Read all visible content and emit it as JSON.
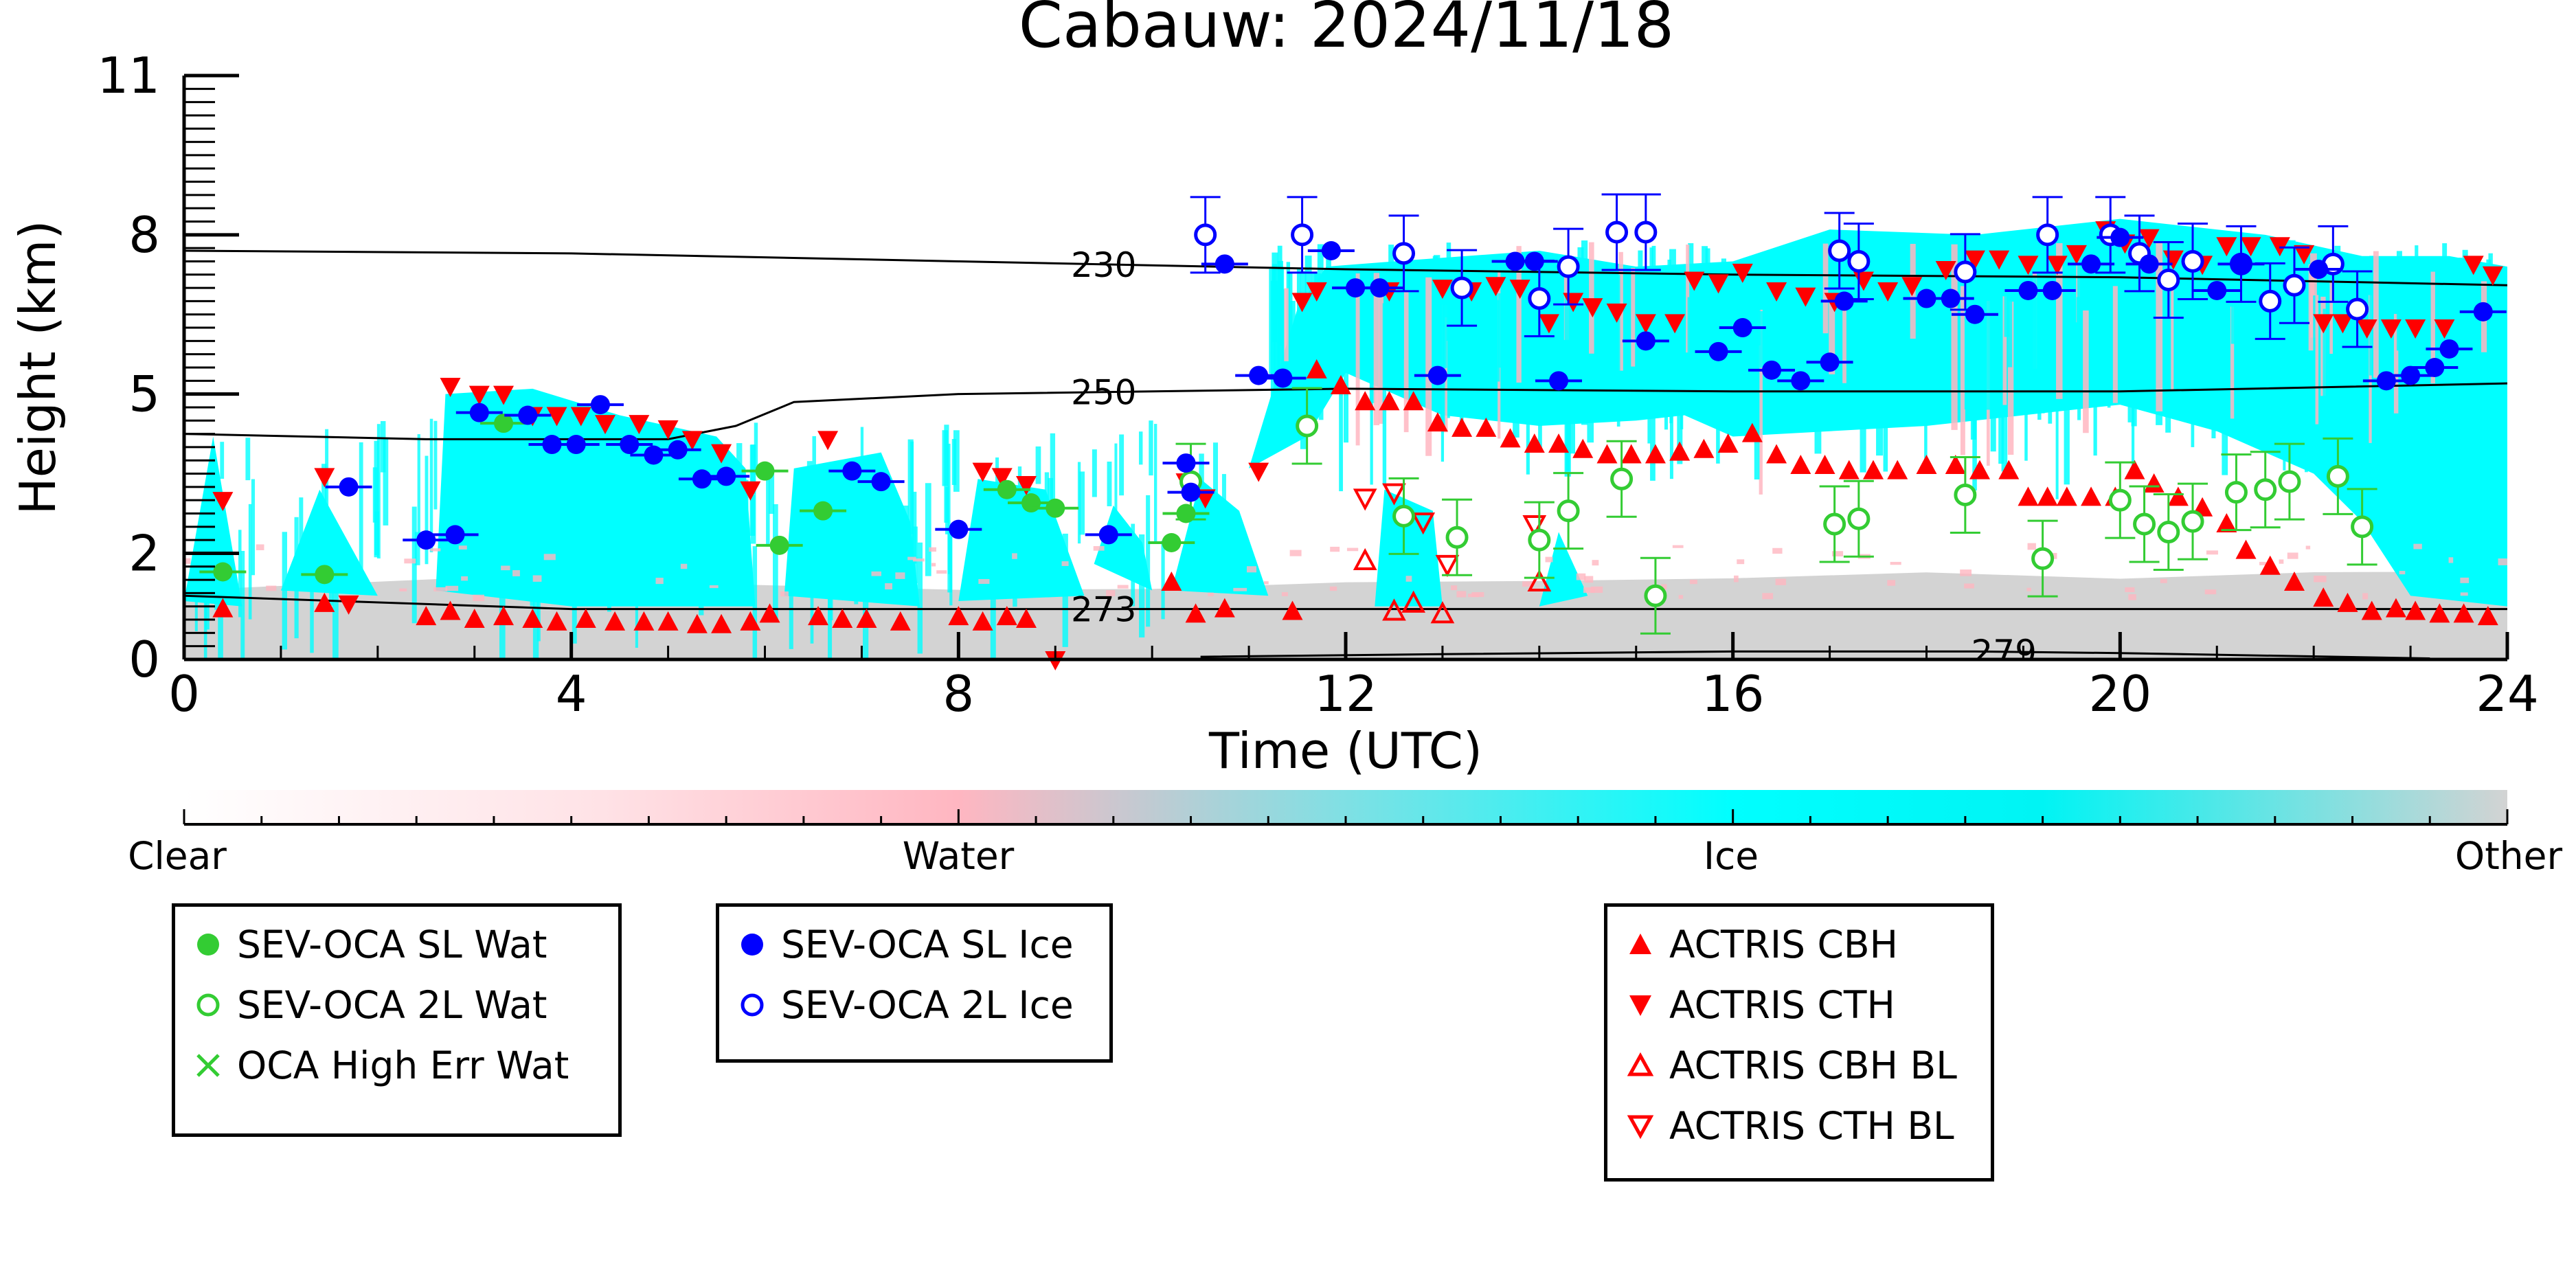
{
  "chart_data": {
    "type": "scatter",
    "title": "Cabauw: 2024/11/18",
    "xlabel": "Time (UTC)",
    "ylabel": "Height (km)",
    "xlim": [
      0,
      24
    ],
    "ylim": [
      0,
      11
    ],
    "x_ticks": [
      0,
      4,
      8,
      12,
      16,
      20,
      24
    ],
    "y_tick_values": [
      0,
      2,
      5,
      8,
      11
    ],
    "y_tick_labels": [
      "0",
      "2",
      "5",
      "8",
      "11"
    ],
    "grid": false,
    "background": "cloud classification image (Clear / Water / Ice / Other) from ground-based remote sensing",
    "colorbar": {
      "labels": [
        "Clear",
        "Water",
        "Ice",
        "Other"
      ],
      "colors": [
        "#ffffff",
        "#ffb6c1",
        "#00ffff",
        "#d3d3d3"
      ]
    },
    "temperature_contours": [
      {
        "label": "230",
        "label_x": 9.5,
        "points": [
          [
            0,
            7.7
          ],
          [
            4,
            7.65
          ],
          [
            8,
            7.5
          ],
          [
            12,
            7.35
          ],
          [
            16,
            7.25
          ],
          [
            20,
            7.2
          ],
          [
            24,
            7.05
          ]
        ]
      },
      {
        "label": "250",
        "label_x": 9.5,
        "points": [
          [
            0,
            4.25
          ],
          [
            2.5,
            4.15
          ],
          [
            5,
            4.15
          ],
          [
            5.7,
            4.4
          ],
          [
            6.3,
            4.85
          ],
          [
            8,
            5.0
          ],
          [
            12,
            5.1
          ],
          [
            16,
            5.05
          ],
          [
            20,
            5.05
          ],
          [
            24,
            5.2
          ]
        ]
      },
      {
        "label": "273",
        "label_x": 9.5,
        "points": [
          [
            0,
            1.2
          ],
          [
            4,
            0.95
          ],
          [
            8,
            0.95
          ],
          [
            12,
            0.95
          ],
          [
            16,
            0.95
          ],
          [
            20,
            0.95
          ],
          [
            24,
            0.95
          ]
        ]
      },
      {
        "label": "279",
        "label_x": 18.8,
        "points": [
          [
            10.5,
            0.05
          ],
          [
            13,
            0.1
          ],
          [
            16,
            0.15
          ],
          [
            18.5,
            0.15
          ],
          [
            20,
            0.12
          ],
          [
            23.2,
            0.02
          ]
        ]
      }
    ],
    "series": [
      {
        "name": "SEV-OCA SL Wat",
        "marker": "filled-circle",
        "color": "#33cc33",
        "x": [
          0.4,
          1.45,
          3.3,
          6.0,
          6.15,
          6.6,
          8.5,
          8.75,
          9.0,
          10.2,
          10.35
        ],
        "y": [
          1.65,
          1.6,
          4.45,
          3.55,
          2.15,
          2.8,
          3.2,
          2.95,
          2.85,
          2.2,
          2.75
        ]
      },
      {
        "name": "SEV-OCA 2L Wat",
        "marker": "open-circle",
        "color": "#33cc33",
        "x": [
          10.4,
          11.6,
          12.6,
          13.15,
          14.0,
          14.3,
          14.85,
          15.2,
          17.05,
          17.3,
          18.4,
          19.2,
          20.0,
          20.25,
          20.5,
          20.75,
          21.2,
          21.5,
          21.75,
          22.25,
          22.5
        ],
        "y": [
          3.35,
          4.4,
          2.7,
          2.3,
          2.25,
          2.8,
          3.4,
          1.2,
          2.55,
          2.65,
          3.1,
          1.9,
          3.0,
          2.55,
          2.4,
          2.6,
          3.15,
          3.2,
          3.35,
          3.45,
          2.5
        ]
      },
      {
        "name": "OCA High Err Wat",
        "marker": "x",
        "color": "#33cc33",
        "x": [],
        "y": []
      },
      {
        "name": "SEV-OCA SL Ice",
        "marker": "filled-circle",
        "color": "#0000ff",
        "x": [
          1.7,
          2.5,
          2.8,
          3.05,
          3.55,
          3.8,
          4.05,
          4.3,
          4.6,
          4.85,
          5.1,
          5.35,
          5.6,
          6.9,
          7.2,
          8.0,
          9.55,
          10.35,
          10.4,
          10.75,
          11.1,
          11.35,
          11.85,
          12.1,
          12.35,
          12.95,
          13.75,
          13.95,
          14.2,
          15.1,
          15.85,
          16.1,
          16.4,
          16.7,
          17.0,
          17.15,
          18.0,
          18.25,
          18.5,
          19.05,
          19.3,
          19.7,
          20.0,
          20.3,
          21.0,
          21.25,
          22.05,
          22.75,
          23.0,
          23.25,
          23.4,
          23.75
        ],
        "y": [
          3.25,
          2.25,
          2.35,
          4.65,
          4.6,
          4.05,
          4.05,
          4.8,
          4.05,
          3.85,
          3.95,
          3.4,
          3.45,
          3.55,
          3.35,
          2.45,
          2.35,
          3.7,
          3.15,
          7.45,
          5.35,
          5.3,
          7.7,
          7.0,
          7.0,
          5.35,
          7.5,
          7.5,
          5.25,
          6.0,
          5.8,
          6.25,
          5.45,
          5.25,
          5.6,
          6.75,
          6.8,
          6.8,
          6.5,
          6.95,
          6.95,
          7.45,
          7.95,
          7.45,
          6.95,
          7.45,
          7.35,
          5.25,
          5.35,
          5.5,
          5.85,
          6.55
        ]
      },
      {
        "name": "SEV-OCA 2L Ice",
        "marker": "open-circle",
        "color": "#0000ff",
        "x": [
          10.55,
          11.55,
          12.6,
          13.2,
          14.0,
          14.3,
          14.8,
          15.1,
          17.1,
          17.3,
          18.4,
          19.25,
          19.9,
          20.2,
          20.5,
          20.75,
          21.25,
          21.55,
          21.8,
          22.2,
          22.45
        ],
        "y": [
          8.0,
          8.0,
          7.65,
          7.0,
          6.8,
          7.4,
          8.05,
          8.05,
          7.7,
          7.5,
          7.3,
          8.0,
          8.0,
          7.65,
          7.15,
          7.5,
          7.45,
          6.75,
          7.05,
          7.45,
          6.6
        ]
      },
      {
        "name": "ACTRIS CBH",
        "marker": "triangle-up",
        "color": "#ff0000",
        "x": [
          0.4,
          1.45,
          2.5,
          2.75,
          3.0,
          3.3,
          3.6,
          3.85,
          4.15,
          4.45,
          4.75,
          5.0,
          5.3,
          5.55,
          5.85,
          6.05,
          6.55,
          6.8,
          7.05,
          7.4,
          8.0,
          8.25,
          8.5,
          8.7,
          10.2,
          10.45,
          10.75,
          11.45,
          11.7,
          11.95,
          12.2,
          12.45,
          12.7,
          12.95,
          13.2,
          13.45,
          13.7,
          13.95,
          14.2,
          14.45,
          14.7,
          14.95,
          15.2,
          15.45,
          15.7,
          15.95,
          16.2,
          16.45,
          16.7,
          16.95,
          17.2,
          17.45,
          17.7,
          18.0,
          18.3,
          18.55,
          18.85,
          19.05,
          19.25,
          19.45,
          19.7,
          19.95,
          20.15,
          20.35,
          20.6,
          20.85,
          21.1,
          21.3,
          21.55,
          21.8,
          22.1,
          22.35,
          22.6,
          22.85,
          23.05,
          23.3,
          23.55,
          23.8
        ],
        "y": [
          0.95,
          1.05,
          0.8,
          0.9,
          0.75,
          0.8,
          0.75,
          0.7,
          0.75,
          0.7,
          0.7,
          0.7,
          0.65,
          0.65,
          0.7,
          0.85,
          0.8,
          0.75,
          0.75,
          0.7,
          0.8,
          0.7,
          0.8,
          0.75,
          1.45,
          0.85,
          0.95,
          0.9,
          5.45,
          5.15,
          4.85,
          4.85,
          4.85,
          4.45,
          4.35,
          4.35,
          4.15,
          4.05,
          4.05,
          3.95,
          3.85,
          3.85,
          3.85,
          3.9,
          3.95,
          4.05,
          4.25,
          3.85,
          3.65,
          3.65,
          3.55,
          3.55,
          3.55,
          3.65,
          3.65,
          3.55,
          3.55,
          3.05,
          3.05,
          3.05,
          3.05,
          3.05,
          3.55,
          3.3,
          3.05,
          2.85,
          2.55,
          2.05,
          1.75,
          1.45,
          1.15,
          1.05,
          0.9,
          0.95,
          0.9,
          0.85,
          0.85,
          0.8
        ]
      },
      {
        "name": "ACTRIS CTH",
        "marker": "triangle-down",
        "color": "#ff0000",
        "x": [
          0.4,
          1.45,
          1.7,
          2.75,
          3.05,
          3.3,
          3.6,
          3.85,
          4.1,
          4.35,
          4.7,
          5.0,
          5.25,
          5.55,
          5.85,
          6.65,
          8.25,
          8.45,
          8.7,
          9.0,
          10.35,
          10.55,
          11.1,
          11.55,
          11.7,
          12.45,
          13.0,
          13.3,
          13.55,
          13.8,
          14.1,
          14.35,
          14.55,
          14.8,
          15.1,
          15.4,
          15.6,
          15.85,
          16.1,
          16.45,
          16.75,
          17.05,
          17.35,
          17.6,
          17.85,
          18.2,
          18.5,
          18.75,
          19.05,
          19.35,
          19.55,
          19.85,
          20.05,
          20.3,
          20.55,
          20.85,
          21.1,
          21.35,
          21.65,
          21.9,
          22.1,
          22.3,
          22.55,
          22.8,
          23.05,
          23.35,
          23.65,
          23.85
        ],
        "y": [
          3.0,
          3.45,
          1.05,
          5.15,
          5.0,
          5.0,
          4.6,
          4.6,
          4.6,
          4.45,
          4.45,
          4.35,
          4.15,
          3.9,
          3.2,
          4.15,
          3.55,
          3.45,
          3.3,
          0.0,
          3.35,
          3.05,
          3.55,
          6.75,
          6.95,
          6.95,
          7.0,
          6.95,
          7.05,
          7.0,
          6.35,
          6.75,
          6.65,
          6.55,
          6.35,
          6.35,
          7.15,
          7.1,
          7.3,
          6.95,
          6.85,
          6.75,
          7.15,
          6.95,
          7.05,
          7.35,
          7.55,
          7.55,
          7.45,
          7.45,
          7.65,
          8.1,
          7.85,
          7.95,
          7.55,
          7.45,
          7.8,
          7.8,
          7.8,
          7.65,
          6.35,
          6.35,
          6.25,
          6.25,
          6.25,
          6.25,
          7.45,
          7.25
        ]
      },
      {
        "name": "ACTRIS CBH BL",
        "marker": "open-triangle-up",
        "color": "#ff0000",
        "x": [
          12.2,
          12.5,
          12.7,
          13.0,
          14.0
        ],
        "y": [
          1.85,
          0.9,
          1.05,
          0.85,
          1.45
        ]
      },
      {
        "name": "ACTRIS CTH BL",
        "marker": "open-triangle-down",
        "color": "#ff0000",
        "x": [
          12.2,
          12.5,
          12.8,
          13.05,
          13.95
        ],
        "y": [
          3.05,
          3.15,
          2.6,
          1.8,
          2.55
        ]
      }
    ]
  },
  "legends": [
    {
      "items": [
        {
          "label": "SEV-OCA SL Wat",
          "marker": "filled-circle",
          "color": "#33cc33"
        },
        {
          "label": "SEV-OCA 2L Wat",
          "marker": "open-circle",
          "color": "#33cc33"
        },
        {
          "label": "OCA High Err Wat",
          "marker": "x",
          "color": "#33cc33"
        }
      ]
    },
    {
      "items": [
        {
          "label": "SEV-OCA SL Ice",
          "marker": "filled-circle",
          "color": "#0000ff"
        },
        {
          "label": "SEV-OCA 2L Ice",
          "marker": "open-circle",
          "color": "#0000ff"
        }
      ]
    },
    {
      "items": [
        {
          "label": "ACTRIS CBH",
          "marker": "triangle-up",
          "color": "#ff0000"
        },
        {
          "label": "ACTRIS CTH",
          "marker": "triangle-down",
          "color": "#ff0000"
        },
        {
          "label": "ACTRIS CBH BL",
          "marker": "open-triangle-up",
          "color": "#ff0000"
        },
        {
          "label": "ACTRIS CTH BL",
          "marker": "open-triangle-down",
          "color": "#ff0000"
        }
      ]
    }
  ]
}
